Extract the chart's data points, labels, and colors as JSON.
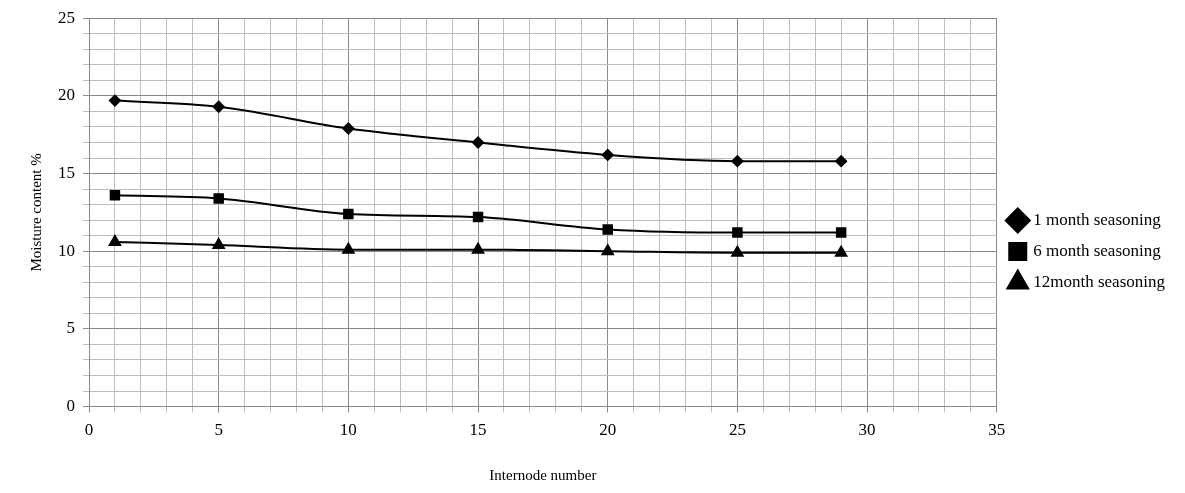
{
  "chart_data": {
    "type": "line",
    "xlabel": "Internode number",
    "ylabel": "Moisture content %",
    "x": [
      1,
      5,
      10,
      15,
      20,
      25,
      29
    ],
    "series": [
      {
        "name": "1 month seasoning",
        "color": "#000000",
        "marker": "diamond",
        "values": [
          19.7,
          19.3,
          17.9,
          17.0,
          16.2,
          15.8,
          15.8
        ]
      },
      {
        "name": "6 month seasoning",
        "color": "#000000",
        "marker": "square",
        "values": [
          13.6,
          13.4,
          12.4,
          12.2,
          11.4,
          11.2,
          11.2
        ]
      },
      {
        "name": "12month seasoning",
        "color": "#000000",
        "marker": "triangle",
        "values": [
          10.6,
          10.4,
          10.1,
          10.1,
          10.0,
          9.9,
          9.9
        ]
      }
    ],
    "xlim": [
      0,
      35
    ],
    "ylim": [
      0,
      25
    ],
    "xticks": [
      0,
      {
        "value": 1,
        "label": null
      },
      {
        "value": 2,
        "label": null
      },
      {
        "value": 3,
        "label": null
      },
      {
        "value": 4,
        "label": null
      },
      5,
      {
        "value": 6,
        "label": null
      },
      {
        "value": 7,
        "label": null
      },
      {
        "value": 8,
        "label": null
      },
      {
        "value": 9,
        "label": null
      },
      10,
      {
        "value": 11,
        "label": null
      },
      {
        "value": 12,
        "label": null
      },
      {
        "value": 13,
        "label": null
      },
      {
        "value": 14,
        "label": null
      },
      15,
      {
        "value": 16,
        "label": null
      },
      {
        "value": 17,
        "label": null
      },
      {
        "value": 18,
        "label": null
      },
      {
        "value": 19,
        "label": null
      },
      20,
      {
        "value": 21,
        "label": null
      },
      {
        "value": 22,
        "label": null
      },
      {
        "value": 23,
        "label": null
      },
      {
        "value": 24,
        "label": null
      },
      25,
      {
        "value": 26,
        "label": null
      },
      {
        "value": 27,
        "label": null
      },
      {
        "value": 28,
        "label": null
      },
      {
        "value": 29,
        "label": null
      },
      30,
      {
        "value": 31,
        "label": null
      },
      {
        "value": 32,
        "label": null
      },
      {
        "value": 33,
        "label": null
      },
      {
        "value": 34,
        "label": null
      },
      35
    ],
    "yticks": [
      0,
      {
        "value": 1,
        "label": null
      },
      {
        "value": 2,
        "label": null
      },
      {
        "value": 3,
        "label": null
      },
      {
        "value": 4,
        "label": null
      },
      5,
      {
        "value": 6,
        "label": null
      },
      {
        "value": 7,
        "label": null
      },
      {
        "value": 8,
        "label": null
      },
      {
        "value": 9,
        "label": null
      },
      10,
      {
        "value": 11,
        "label": null
      },
      {
        "value": 12,
        "label": null
      },
      {
        "value": 13,
        "label": null
      },
      {
        "value": 14,
        "label": null
      },
      15,
      {
        "value": 16,
        "label": null
      },
      {
        "value": 17,
        "label": null
      },
      {
        "value": 18,
        "label": null
      },
      {
        "value": 19,
        "label": null
      },
      20,
      {
        "value": 21,
        "label": null
      },
      {
        "value": 22,
        "label": null
      },
      {
        "value": 23,
        "label": null
      },
      {
        "value": 24,
        "label": null
      },
      25
    ],
    "grid": true,
    "legend": "right",
    "line_style": "solid"
  }
}
